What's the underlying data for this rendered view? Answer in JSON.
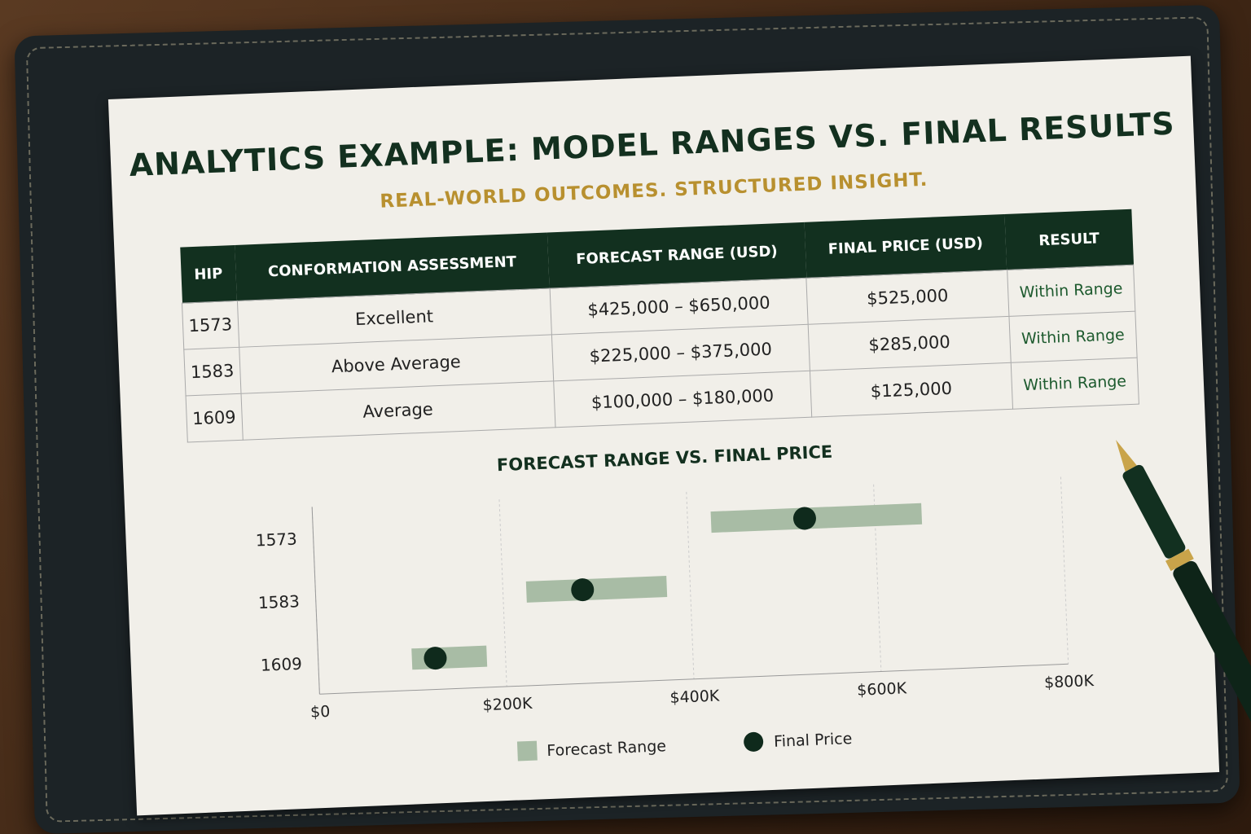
{
  "header": {
    "title": "ANALYTICS EXAMPLE: MODEL RANGES VS. FINAL RESULTS",
    "subtitle": "REAL-WORLD OUTCOMES. STRUCTURED INSIGHT."
  },
  "table": {
    "columns": [
      "HIP",
      "CONFORMATION ASSESSMENT",
      "FORECAST RANGE (USD)",
      "FINAL PRICE (USD)",
      "RESULT"
    ],
    "rows": [
      [
        "1573",
        "Excellent",
        "$425,000 – $650,000",
        "$525,000",
        "Within Range"
      ],
      [
        "1583",
        "Above Average",
        "$225,000 – $375,000",
        "$285,000",
        "Within Range"
      ],
      [
        "1609",
        "Average",
        "$100,000 – $180,000",
        "$125,000",
        "Within Range"
      ]
    ]
  },
  "chart_data": {
    "type": "range",
    "title": "FORECAST RANGE VS. FINAL PRICE",
    "categories": [
      "1573",
      "1583",
      "1609"
    ],
    "series": [
      {
        "name": "Forecast Range",
        "color": "#a8bca5",
        "values": [
          [
            425000,
            650000
          ],
          [
            225000,
            375000
          ],
          [
            100000,
            180000
          ]
        ]
      },
      {
        "name": "Final Price",
        "color": "#0f2a1c",
        "values": [
          525000,
          285000,
          125000
        ]
      }
    ],
    "xlim": [
      0,
      800000
    ],
    "xticks": [
      {
        "value": 0,
        "label": "$0"
      },
      {
        "value": 200000,
        "label": "$200K"
      },
      {
        "value": 400000,
        "label": "$400K"
      },
      {
        "value": 600000,
        "label": "$600K"
      },
      {
        "value": 800000,
        "label": "$800K"
      }
    ],
    "grid": true
  }
}
